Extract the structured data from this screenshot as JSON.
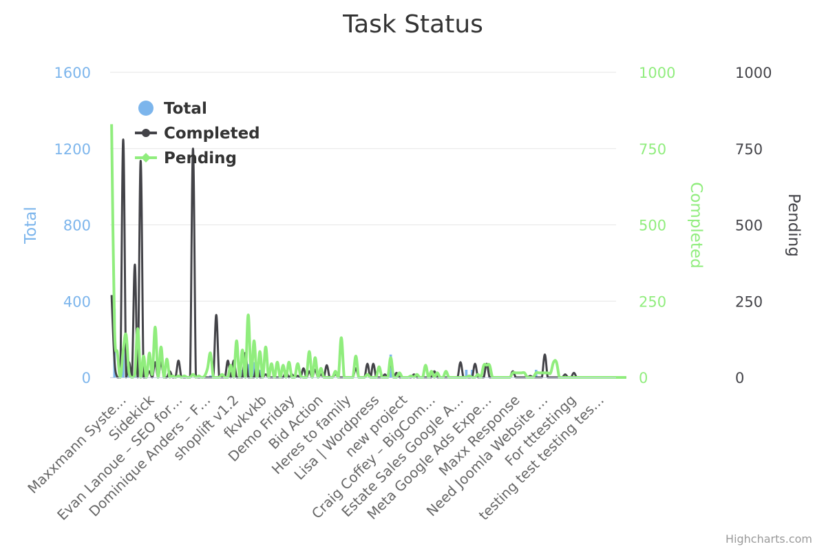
{
  "credits": "Highcharts.com",
  "colors": {
    "total": "#7cb5ec",
    "completed": "#434348",
    "pending": "#90ed7d",
    "grid": "#e6e6e6",
    "title": "#333333"
  },
  "chart_data": {
    "type": "line",
    "title": "Task Status",
    "legend_position": "top-left",
    "grid": true,
    "x_tick_labels": [
      "Maxxmann Syste…",
      "Sidekick",
      "Evan Lanoue – SEO for…",
      "Dominique Anders – F…",
      "shoplift v1.2",
      "fkvkvkb",
      "Demo Friday",
      "Bid Action",
      "Heres to family",
      "Lisa | Wordpress",
      "new project",
      "Craig Coffey – BigCom…",
      "Estate Sales Google A…",
      "Meta Google Ads Expe…",
      "Maxx Response",
      "Need Joomla Website …",
      "For tttestingg",
      "testing test testing tes…"
    ],
    "axes": {
      "total": {
        "label": "Total",
        "range": [
          0,
          1600
        ],
        "ticks": [
          "0",
          "400",
          "800",
          "1200",
          "1600"
        ]
      },
      "completed": {
        "label": "Completed",
        "range": [
          0,
          1000
        ],
        "ticks": [
          "0",
          "250",
          "500",
          "750",
          "1000"
        ]
      },
      "pending": {
        "label": "Pending",
        "range": [
          0,
          1000
        ],
        "ticks": [
          "0",
          "250",
          "500",
          "750",
          "1000"
        ]
      }
    },
    "series": [
      {
        "name": "Total",
        "type": "column",
        "axis": "total",
        "values": [
          0,
          360,
          0,
          0,
          150,
          0,
          30,
          0,
          20,
          0,
          0,
          0,
          10,
          0,
          40,
          0,
          0,
          0,
          0,
          0,
          0,
          0,
          0,
          0,
          0,
          0,
          0,
          0,
          0,
          0,
          0,
          0,
          0,
          0,
          10,
          0,
          0,
          0,
          0,
          0,
          0,
          0,
          30,
          0,
          0,
          40,
          0,
          70,
          0,
          80,
          0,
          40,
          0,
          0,
          20,
          0,
          0,
          0,
          30,
          0,
          0,
          0,
          0,
          0,
          0,
          0,
          0,
          0,
          0,
          0,
          0,
          0,
          0,
          0,
          0,
          0,
          0,
          0,
          10,
          0,
          0,
          0,
          0,
          0,
          0,
          0,
          0,
          0,
          0,
          0,
          0,
          0,
          0,
          0,
          0,
          0,
          120,
          0,
          0,
          0,
          0,
          0,
          0,
          0,
          0,
          0,
          0,
          0,
          0,
          0,
          0,
          0,
          0,
          0,
          0,
          0,
          0,
          0,
          0,
          0,
          0,
          0,
          40,
          0,
          40,
          0,
          0,
          0,
          0,
          0,
          0,
          0,
          0,
          0,
          0,
          0,
          0,
          0,
          0,
          0,
          0,
          0,
          0,
          0,
          0,
          0,
          40,
          0,
          0,
          0,
          0,
          0,
          0,
          0,
          0,
          0,
          0,
          0,
          0,
          0,
          0,
          0,
          0,
          0,
          0,
          0,
          0,
          0,
          0,
          0,
          0,
          0,
          0,
          0
        ]
      },
      {
        "name": "Completed",
        "type": "spline",
        "axis": "completed",
        "values": [
          270,
          55,
          0,
          0,
          780,
          0,
          50,
          0,
          370,
          0,
          710,
          0,
          0,
          20,
          0,
          50,
          0,
          50,
          0,
          0,
          20,
          0,
          0,
          55,
          0,
          0,
          0,
          0,
          750,
          0,
          0,
          0,
          0,
          0,
          0,
          0,
          205,
          0,
          0,
          0,
          55,
          0,
          55,
          0,
          0,
          0,
          80,
          0,
          0,
          0,
          45,
          0,
          0,
          10,
          0,
          0,
          0,
          0,
          0,
          0,
          20,
          0,
          10,
          0,
          5,
          0,
          30,
          0,
          20,
          0,
          25,
          0,
          10,
          0,
          40,
          0,
          0,
          10,
          0,
          0,
          0,
          0,
          0,
          0,
          30,
          0,
          0,
          0,
          45,
          0,
          45,
          0,
          0,
          0,
          10,
          0,
          50,
          0,
          15,
          0,
          0,
          0,
          0,
          0,
          10,
          0,
          0,
          0,
          0,
          0,
          0,
          20,
          0,
          0,
          0,
          0,
          0,
          0,
          0,
          0,
          50,
          0,
          0,
          0,
          0,
          45,
          0,
          0,
          0,
          45,
          0,
          0,
          0,
          0,
          0,
          0,
          0,
          0,
          20,
          0,
          0,
          0,
          0,
          0,
          5,
          0,
          0,
          0,
          0,
          75,
          0,
          0,
          0,
          0,
          0,
          0,
          10,
          0,
          0,
          15,
          0,
          0,
          0,
          0,
          0,
          0,
          0,
          0,
          0,
          0,
          0,
          0,
          0,
          0,
          0,
          0,
          0,
          0
        ]
      },
      {
        "name": "Pending",
        "type": "spline",
        "axis": "pending",
        "values": [
          830,
          170,
          80,
          0,
          90,
          140,
          15,
          0,
          10,
          160,
          0,
          70,
          0,
          80,
          10,
          165,
          0,
          100,
          0,
          60,
          0,
          5,
          0,
          5,
          0,
          5,
          0,
          0,
          10,
          0,
          5,
          0,
          5,
          30,
          80,
          0,
          0,
          0,
          10,
          0,
          0,
          40,
          0,
          120,
          0,
          90,
          0,
          205,
          0,
          120,
          0,
          85,
          0,
          100,
          0,
          45,
          0,
          50,
          0,
          40,
          0,
          50,
          0,
          0,
          45,
          5,
          0,
          0,
          85,
          0,
          65,
          0,
          30,
          0,
          0,
          0,
          0,
          20,
          0,
          130,
          0,
          0,
          0,
          0,
          70,
          0,
          0,
          0,
          10,
          0,
          0,
          0,
          35,
          0,
          0,
          0,
          65,
          0,
          0,
          15,
          0,
          0,
          0,
          5,
          0,
          10,
          0,
          0,
          40,
          0,
          20,
          0,
          15,
          0,
          0,
          20,
          0,
          0,
          0,
          0,
          0,
          0,
          0,
          5,
          0,
          0,
          10,
          0,
          40,
          40,
          40,
          0,
          0,
          0,
          0,
          0,
          0,
          0,
          15,
          15,
          15,
          15,
          15,
          0,
          0,
          0,
          15,
          15,
          15,
          15,
          15,
          15,
          50,
          50,
          0,
          0,
          0,
          0,
          0,
          0,
          0,
          0,
          0,
          0,
          0,
          0,
          0,
          0,
          0,
          0,
          0,
          0,
          0,
          0,
          0,
          0,
          0,
          0
        ]
      }
    ]
  }
}
